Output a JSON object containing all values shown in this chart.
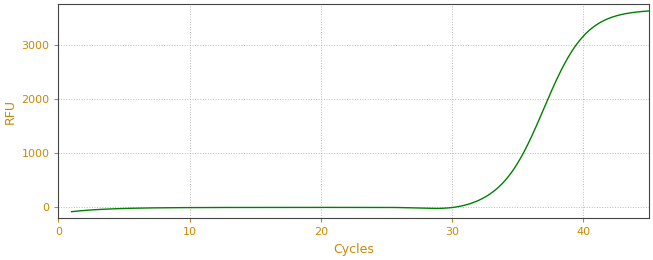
{
  "title": "",
  "xlabel": "Cycles",
  "ylabel": "RFU",
  "xlim": [
    0,
    45
  ],
  "ylim": [
    -200,
    3750
  ],
  "yticks": [
    0,
    1000,
    2000,
    3000
  ],
  "xticks": [
    0,
    10,
    20,
    30,
    40
  ],
  "line_color": "#008000",
  "background_color": "#ffffff",
  "grid_color": "#aaaaaa",
  "tick_color": "#cc8800",
  "label_color": "#cc8800",
  "figsize": [
    6.53,
    2.6
  ],
  "dpi": 100,
  "sigmoid_L": 3700,
  "sigmoid_k": 0.62,
  "sigmoid_x0": 37.0
}
